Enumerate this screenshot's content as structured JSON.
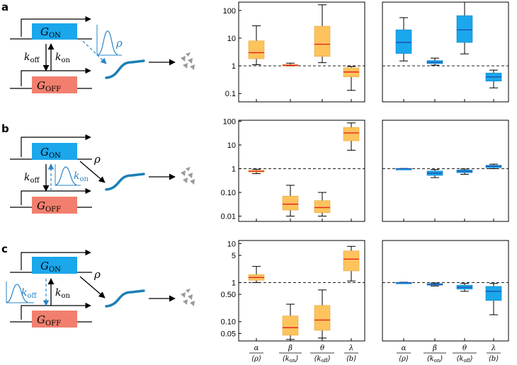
{
  "figure": {
    "panels": [
      {
        "letter": "a",
        "schematic": {
          "gene_on": "G",
          "gene_on_sub": "ON",
          "gene_off": "G",
          "gene_off_sub": "OFF",
          "left_rate": "k",
          "left_rate_sub": "off",
          "right_rate": "k",
          "right_rate_sub": "on",
          "noisy_param": "ρ"
        }
      },
      {
        "letter": "b",
        "schematic": {
          "gene_on": "G",
          "gene_on_sub": "ON",
          "gene_off": "G",
          "gene_off_sub": "OFF",
          "left_rate": "k",
          "left_rate_sub": "off",
          "right_rate": "k",
          "right_rate_sub": "on",
          "production_label": "ρ"
        }
      },
      {
        "letter": "c",
        "schematic": {
          "gene_on": "G",
          "gene_on_sub": "ON",
          "gene_off": "G",
          "gene_off_sub": "OFF",
          "left_rate": "k",
          "left_rate_sub": "off",
          "right_rate": "k",
          "right_rate_sub": "on",
          "production_label": "ρ"
        }
      }
    ],
    "x_labels": [
      {
        "num": "α",
        "den": "⟨ρ⟩",
        "den_sub": ""
      },
      {
        "num": "β",
        "den": "⟨k",
        "den_sub": "on",
        "den_close": "⟩"
      },
      {
        "num": "θ",
        "den": "⟨k",
        "den_sub": "off",
        "den_close": "⟩"
      },
      {
        "num": "λ",
        "den": "⟨b⟩",
        "den_sub": ""
      }
    ],
    "colors": {
      "orange": "#FDC35C",
      "orange_edge": "#E8A53B",
      "blue": "#1AA7EC",
      "blue_edge": "#0C83C4",
      "median_orange": "#E8241E",
      "median_blue": "#1F4FB3",
      "gene_on": "#1AA7EC",
      "gene_off": "#F27F6E",
      "arrow_blue": "#2A84C7",
      "mrna": "#1C7FB5",
      "protein": "#999999"
    }
  },
  "chart_data": [
    {
      "type": "boxplot",
      "panel": "a",
      "side": "left",
      "scale": "log",
      "ylim": [
        0.05,
        200
      ],
      "ticks": [
        100,
        10,
        1,
        0.1
      ],
      "tick_labels": [
        "100",
        "10",
        "1",
        "0.1"
      ],
      "reference_line": 1,
      "categories": [
        "α/⟨ρ⟩",
        "β/⟨kon⟩",
        "θ/⟨koff⟩",
        "λ/⟨b⟩"
      ],
      "boxes": [
        {
          "whislo": 1.1,
          "q1": 1.8,
          "med": 3.0,
          "q3": 8.0,
          "whishi": 28
        },
        {
          "whislo": 0.98,
          "q1": 1.0,
          "med": 1.05,
          "q3": 1.1,
          "whishi": 1.25
        },
        {
          "whislo": 1.3,
          "q1": 2.2,
          "med": 6.0,
          "q3": 27,
          "whishi": 160
        },
        {
          "whislo": 0.13,
          "q1": 0.4,
          "med": 0.6,
          "q3": 0.85,
          "whishi": 0.95
        }
      ]
    },
    {
      "type": "boxplot",
      "panel": "a",
      "side": "right",
      "scale": "log",
      "ylim": [
        0.05,
        200
      ],
      "ticks": [],
      "tick_labels": [],
      "reference_line": 1,
      "categories": [
        "α/⟨ρ⟩",
        "β/⟨kon⟩",
        "θ/⟨koff⟩",
        "λ/⟨b⟩"
      ],
      "boxes": [
        {
          "whislo": 1.5,
          "q1": 2.8,
          "med": 7.0,
          "q3": 20,
          "whishi": 55
        },
        {
          "whislo": 1.05,
          "q1": 1.2,
          "med": 1.35,
          "q3": 1.55,
          "whishi": 1.9
        },
        {
          "whislo": 2.7,
          "q1": 7.0,
          "med": 20,
          "q3": 65,
          "whishi": 200
        },
        {
          "whislo": 0.16,
          "q1": 0.28,
          "med": 0.4,
          "q3": 0.55,
          "whishi": 0.7
        }
      ]
    },
    {
      "type": "boxplot",
      "panel": "b",
      "side": "left",
      "scale": "log",
      "ylim": [
        0.006,
        110
      ],
      "ticks": [
        100,
        10,
        1,
        0.1,
        0.01
      ],
      "tick_labels": [
        "100",
        "10",
        "1",
        "0.10",
        "0.01"
      ],
      "reference_line": 1,
      "categories": [
        "α/⟨ρ⟩",
        "β/⟨kon⟩",
        "θ/⟨koff⟩",
        "λ/⟨b⟩"
      ],
      "boxes": [
        {
          "whislo": 0.62,
          "q1": 0.72,
          "med": 0.78,
          "q3": 0.85,
          "whishi": 0.95
        },
        {
          "whislo": 0.01,
          "q1": 0.018,
          "med": 0.032,
          "q3": 0.07,
          "whishi": 0.2
        },
        {
          "whislo": 0.01,
          "q1": 0.014,
          "med": 0.023,
          "q3": 0.045,
          "whishi": 0.1
        },
        {
          "whislo": 6,
          "q1": 15,
          "med": 32,
          "q3": 55,
          "whishi": 85
        }
      ]
    },
    {
      "type": "boxplot",
      "panel": "b",
      "side": "right",
      "scale": "log",
      "ylim": [
        0.006,
        110
      ],
      "ticks": [],
      "tick_labels": [],
      "reference_line": 1,
      "categories": [
        "α/⟨ρ⟩",
        "β/⟨kon⟩",
        "θ/⟨koff⟩",
        "λ/⟨b⟩"
      ],
      "boxes": [
        {
          "whislo": 0.96,
          "q1": 0.98,
          "med": 1.0,
          "q3": 1.01,
          "whishi": 1.02
        },
        {
          "whislo": 0.42,
          "q1": 0.52,
          "med": 0.65,
          "q3": 0.8,
          "whishi": 0.92
        },
        {
          "whislo": 0.58,
          "q1": 0.68,
          "med": 0.78,
          "q3": 0.88,
          "whishi": 0.97
        },
        {
          "whislo": 1.0,
          "q1": 1.1,
          "med": 1.25,
          "q3": 1.4,
          "whishi": 1.55
        }
      ]
    },
    {
      "type": "boxplot",
      "panel": "c",
      "side": "left",
      "scale": "log",
      "ylim": [
        0.032,
        12
      ],
      "ticks": [
        10,
        5,
        1,
        0.5,
        0.1,
        0.05
      ],
      "tick_labels": [
        "10",
        "5",
        "1",
        "0.50",
        "0.10",
        "0.05"
      ],
      "reference_line": 1,
      "categories": [
        "α/⟨ρ⟩",
        "β/⟨kon⟩",
        "θ/⟨koff⟩",
        "λ/⟨b⟩"
      ],
      "boxes": [
        {
          "whislo": 1.0,
          "q1": 1.15,
          "med": 1.35,
          "q3": 1.6,
          "whishi": 2.6
        },
        {
          "whislo": 0.035,
          "q1": 0.045,
          "med": 0.07,
          "q3": 0.14,
          "whishi": 0.28
        },
        {
          "whislo": 0.038,
          "q1": 0.06,
          "med": 0.11,
          "q3": 0.26,
          "whishi": 0.65
        },
        {
          "whislo": 1.1,
          "q1": 2.0,
          "med": 4.0,
          "q3": 6.5,
          "whishi": 8.5
        }
      ]
    },
    {
      "type": "boxplot",
      "panel": "c",
      "side": "right",
      "scale": "log",
      "ylim": [
        0.032,
        12
      ],
      "ticks": [],
      "tick_labels": [],
      "reference_line": 1,
      "categories": [
        "α/⟨ρ⟩",
        "β/⟨kon⟩",
        "θ/⟨koff⟩",
        "λ/⟨b⟩"
      ],
      "boxes": [
        {
          "whislo": 0.98,
          "q1": 0.99,
          "med": 1.0,
          "q3": 1.01,
          "whishi": 1.02
        },
        {
          "whislo": 0.82,
          "q1": 0.86,
          "med": 0.9,
          "q3": 0.94,
          "whishi": 0.98
        },
        {
          "whislo": 0.6,
          "q1": 0.68,
          "med": 0.76,
          "q3": 0.86,
          "whishi": 0.95
        },
        {
          "whislo": 0.15,
          "q1": 0.35,
          "med": 0.6,
          "q3": 0.8,
          "whishi": 0.95
        }
      ]
    }
  ]
}
